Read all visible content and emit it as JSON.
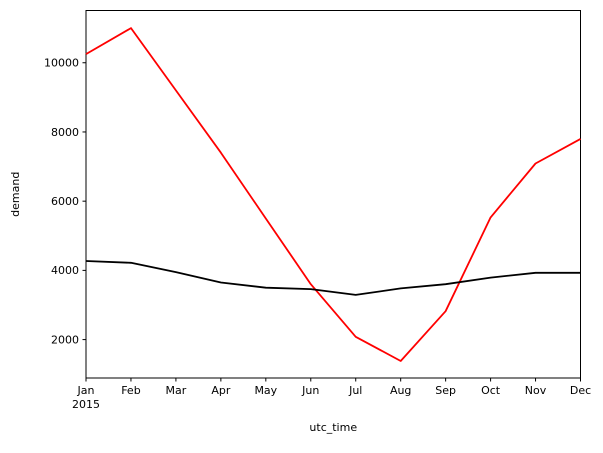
{
  "figure": {
    "background": "#ffffff",
    "title": ""
  },
  "chart_data": {
    "type": "line",
    "title": "",
    "xlabel": "utc_time",
    "ylabel": "demand",
    "x_tick_labels": [
      "Jan",
      "Feb",
      "Mar",
      "Apr",
      "May",
      "Jun",
      "Jul",
      "Aug",
      "Sep",
      "Oct",
      "Nov",
      "Dec"
    ],
    "first_tick_year": "2015",
    "y_ticks": [
      2000,
      4000,
      6000,
      8000,
      10000
    ],
    "ylim": [
      890,
      11510
    ],
    "grid": false,
    "legend_position": "none",
    "series": [
      {
        "name": "red-series",
        "color": "#ff0000",
        "values": [
          10250,
          11000,
          9200,
          7400,
          5500,
          3600,
          2080,
          1380,
          2820,
          5530,
          7090,
          7800
        ]
      },
      {
        "name": "black-series",
        "color": "#000000",
        "values": [
          4270,
          4220,
          3950,
          3650,
          3500,
          3460,
          3290,
          3480,
          3600,
          3790,
          3930,
          3930
        ]
      }
    ]
  }
}
